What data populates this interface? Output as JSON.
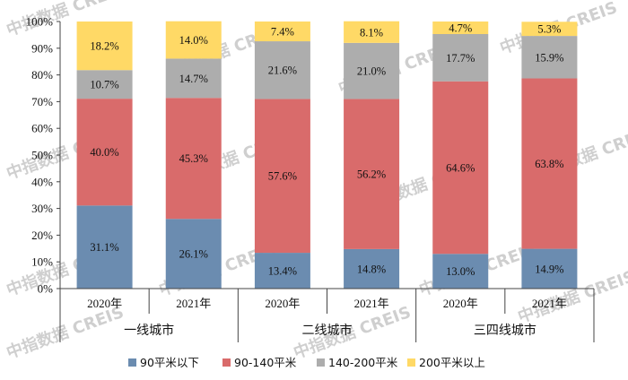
{
  "chart_data": {
    "type": "bar",
    "stacked": true,
    "percent": true,
    "categories": [
      "2020年",
      "2021年",
      "2020年",
      "2021年",
      "2020年",
      "2021年"
    ],
    "groups": [
      {
        "label": "一线城市",
        "span": [
          0,
          1
        ]
      },
      {
        "label": "二线城市",
        "span": [
          2,
          3
        ]
      },
      {
        "label": "三四线城市",
        "span": [
          4,
          5
        ]
      }
    ],
    "series": [
      {
        "name": "90平米以下",
        "color": "#6b8cb0",
        "values": [
          31.1,
          26.1,
          13.4,
          14.8,
          13.0,
          14.9
        ]
      },
      {
        "name": "90-140平米",
        "color": "#d96b6b",
        "values": [
          40.0,
          45.3,
          57.6,
          56.2,
          64.6,
          63.8
        ]
      },
      {
        "name": "140-200平米",
        "color": "#adadad",
        "values": [
          10.7,
          14.7,
          21.6,
          21.0,
          17.7,
          15.9
        ]
      },
      {
        "name": "200平米以上",
        "color": "#ffd966",
        "values": [
          18.2,
          14.0,
          7.4,
          8.1,
          4.7,
          5.3
        ]
      }
    ],
    "ylim": [
      0,
      100
    ],
    "yticks": [
      "0%",
      "10%",
      "20%",
      "30%",
      "40%",
      "50%",
      "60%",
      "70%",
      "80%",
      "90%",
      "100%"
    ],
    "legend_position": "bottom"
  },
  "watermark": {
    "text": "中指数据 CREIS"
  }
}
